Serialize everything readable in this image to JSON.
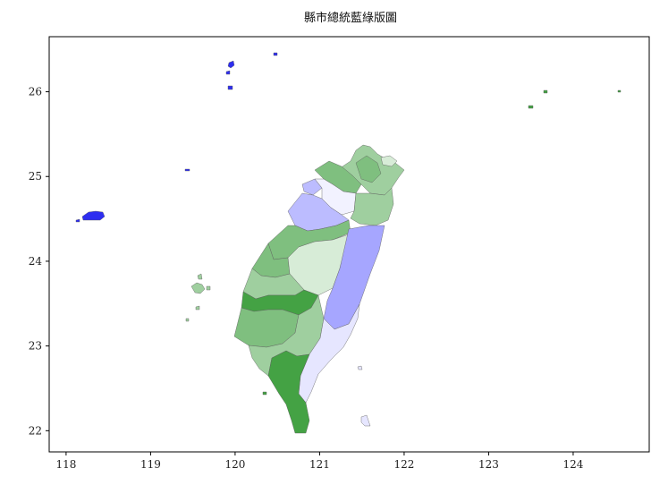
{
  "title": "縣市總統藍綠版圖",
  "colors": {
    "green_dark": "#44a244",
    "green_mid": "#7fbf7f",
    "green_light": "#9fcf9f",
    "green_pale": "#d7ecd7",
    "blue_strong": "#2e2ef0",
    "blue_mid": "#a6a6ff",
    "blue_light": "#bcbcff",
    "blue_pale": "#e6e6ff",
    "frame": "#000000"
  },
  "chart_data": {
    "type": "map",
    "title": "縣市總統藍綠版圖",
    "xlim": [
      117.8,
      124.9
    ],
    "ylim": [
      21.75,
      26.65
    ],
    "xticks": [
      118,
      119,
      120,
      121,
      122,
      123,
      124
    ],
    "yticks": [
      22,
      23,
      24,
      25,
      26
    ],
    "xtick_labels": [
      "118",
      "119",
      "120",
      "121",
      "122",
      "123",
      "124"
    ],
    "ytick_labels": [
      "22",
      "23",
      "24",
      "25",
      "26"
    ],
    "grid": false,
    "legend": "none"
  }
}
